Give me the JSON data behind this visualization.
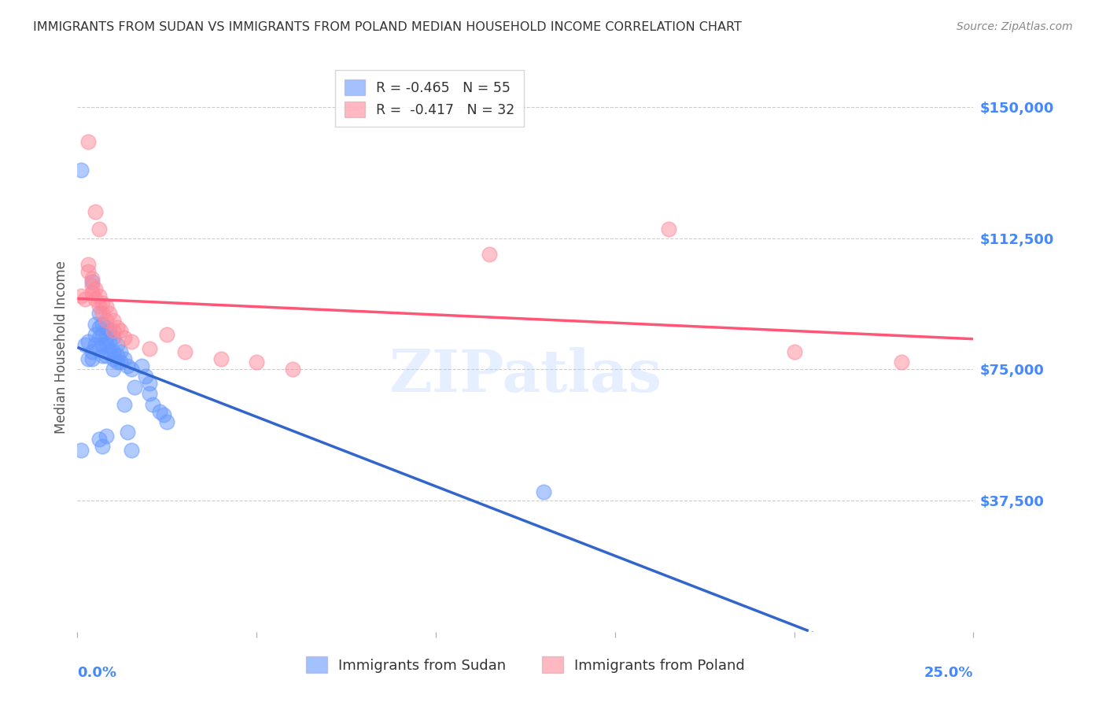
{
  "title": "IMMIGRANTS FROM SUDAN VS IMMIGRANTS FROM POLAND MEDIAN HOUSEHOLD INCOME CORRELATION CHART",
  "source": "Source: ZipAtlas.com",
  "ylabel": "Median Household Income",
  "yticks": [
    0,
    37500,
    75000,
    112500,
    150000
  ],
  "ytick_labels": [
    "",
    "$37,500",
    "$75,000",
    "$112,500",
    "$150,000"
  ],
  "xlim": [
    0.0,
    0.25
  ],
  "ylim": [
    0,
    162500
  ],
  "background_color": "#ffffff",
  "grid_color": "#cccccc",
  "watermark": "ZIPatlas",
  "sudan_color": "#6699ff",
  "poland_color": "#ff8899",
  "sudan_line_color": "#3366cc",
  "poland_line_color": "#ff5577",
  "axis_color": "#4488ff",
  "sudan_points": [
    [
      0.001,
      132000
    ],
    [
      0.002,
      82000
    ],
    [
      0.003,
      83000
    ],
    [
      0.003,
      78000
    ],
    [
      0.004,
      100000
    ],
    [
      0.004,
      80000
    ],
    [
      0.004,
      78000
    ],
    [
      0.005,
      88000
    ],
    [
      0.005,
      85000
    ],
    [
      0.005,
      82000
    ],
    [
      0.006,
      91000
    ],
    [
      0.006,
      87000
    ],
    [
      0.006,
      84000
    ],
    [
      0.006,
      81000
    ],
    [
      0.007,
      88000
    ],
    [
      0.007,
      85000
    ],
    [
      0.007,
      82000
    ],
    [
      0.007,
      79000
    ],
    [
      0.008,
      87000
    ],
    [
      0.008,
      84000
    ],
    [
      0.008,
      82000
    ],
    [
      0.008,
      79000
    ],
    [
      0.009,
      86000
    ],
    [
      0.009,
      83000
    ],
    [
      0.009,
      80000
    ],
    [
      0.01,
      84000
    ],
    [
      0.01,
      80000
    ],
    [
      0.01,
      78000
    ],
    [
      0.01,
      75000
    ],
    [
      0.011,
      82000
    ],
    [
      0.011,
      79000
    ],
    [
      0.011,
      77000
    ],
    [
      0.012,
      80000
    ],
    [
      0.012,
      77000
    ],
    [
      0.013,
      78000
    ],
    [
      0.013,
      65000
    ],
    [
      0.014,
      76000
    ],
    [
      0.014,
      57000
    ],
    [
      0.015,
      75000
    ],
    [
      0.015,
      52000
    ],
    [
      0.016,
      70000
    ],
    [
      0.018,
      76000
    ],
    [
      0.019,
      73000
    ],
    [
      0.02,
      71000
    ],
    [
      0.02,
      68000
    ],
    [
      0.021,
      65000
    ],
    [
      0.023,
      63000
    ],
    [
      0.024,
      62000
    ],
    [
      0.025,
      60000
    ],
    [
      0.001,
      52000
    ],
    [
      0.006,
      55000
    ],
    [
      0.007,
      53000
    ],
    [
      0.008,
      56000
    ],
    [
      0.13,
      40000
    ]
  ],
  "poland_points": [
    [
      0.003,
      140000
    ],
    [
      0.005,
      120000
    ],
    [
      0.006,
      115000
    ],
    [
      0.001,
      96000
    ],
    [
      0.002,
      95000
    ],
    [
      0.003,
      105000
    ],
    [
      0.003,
      103000
    ],
    [
      0.004,
      101000
    ],
    [
      0.004,
      99000
    ],
    [
      0.004,
      97000
    ],
    [
      0.005,
      98000
    ],
    [
      0.005,
      95000
    ],
    [
      0.006,
      96000
    ],
    [
      0.006,
      93000
    ],
    [
      0.007,
      94000
    ],
    [
      0.007,
      91000
    ],
    [
      0.008,
      93000
    ],
    [
      0.008,
      89000
    ],
    [
      0.009,
      91000
    ],
    [
      0.01,
      89000
    ],
    [
      0.01,
      86000
    ],
    [
      0.011,
      87000
    ],
    [
      0.012,
      86000
    ],
    [
      0.013,
      84000
    ],
    [
      0.015,
      83000
    ],
    [
      0.02,
      81000
    ],
    [
      0.025,
      85000
    ],
    [
      0.03,
      80000
    ],
    [
      0.04,
      78000
    ],
    [
      0.05,
      77000
    ],
    [
      0.06,
      75000
    ],
    [
      0.115,
      108000
    ],
    [
      0.165,
      115000
    ],
    [
      0.2,
      80000
    ],
    [
      0.23,
      77000
    ]
  ]
}
